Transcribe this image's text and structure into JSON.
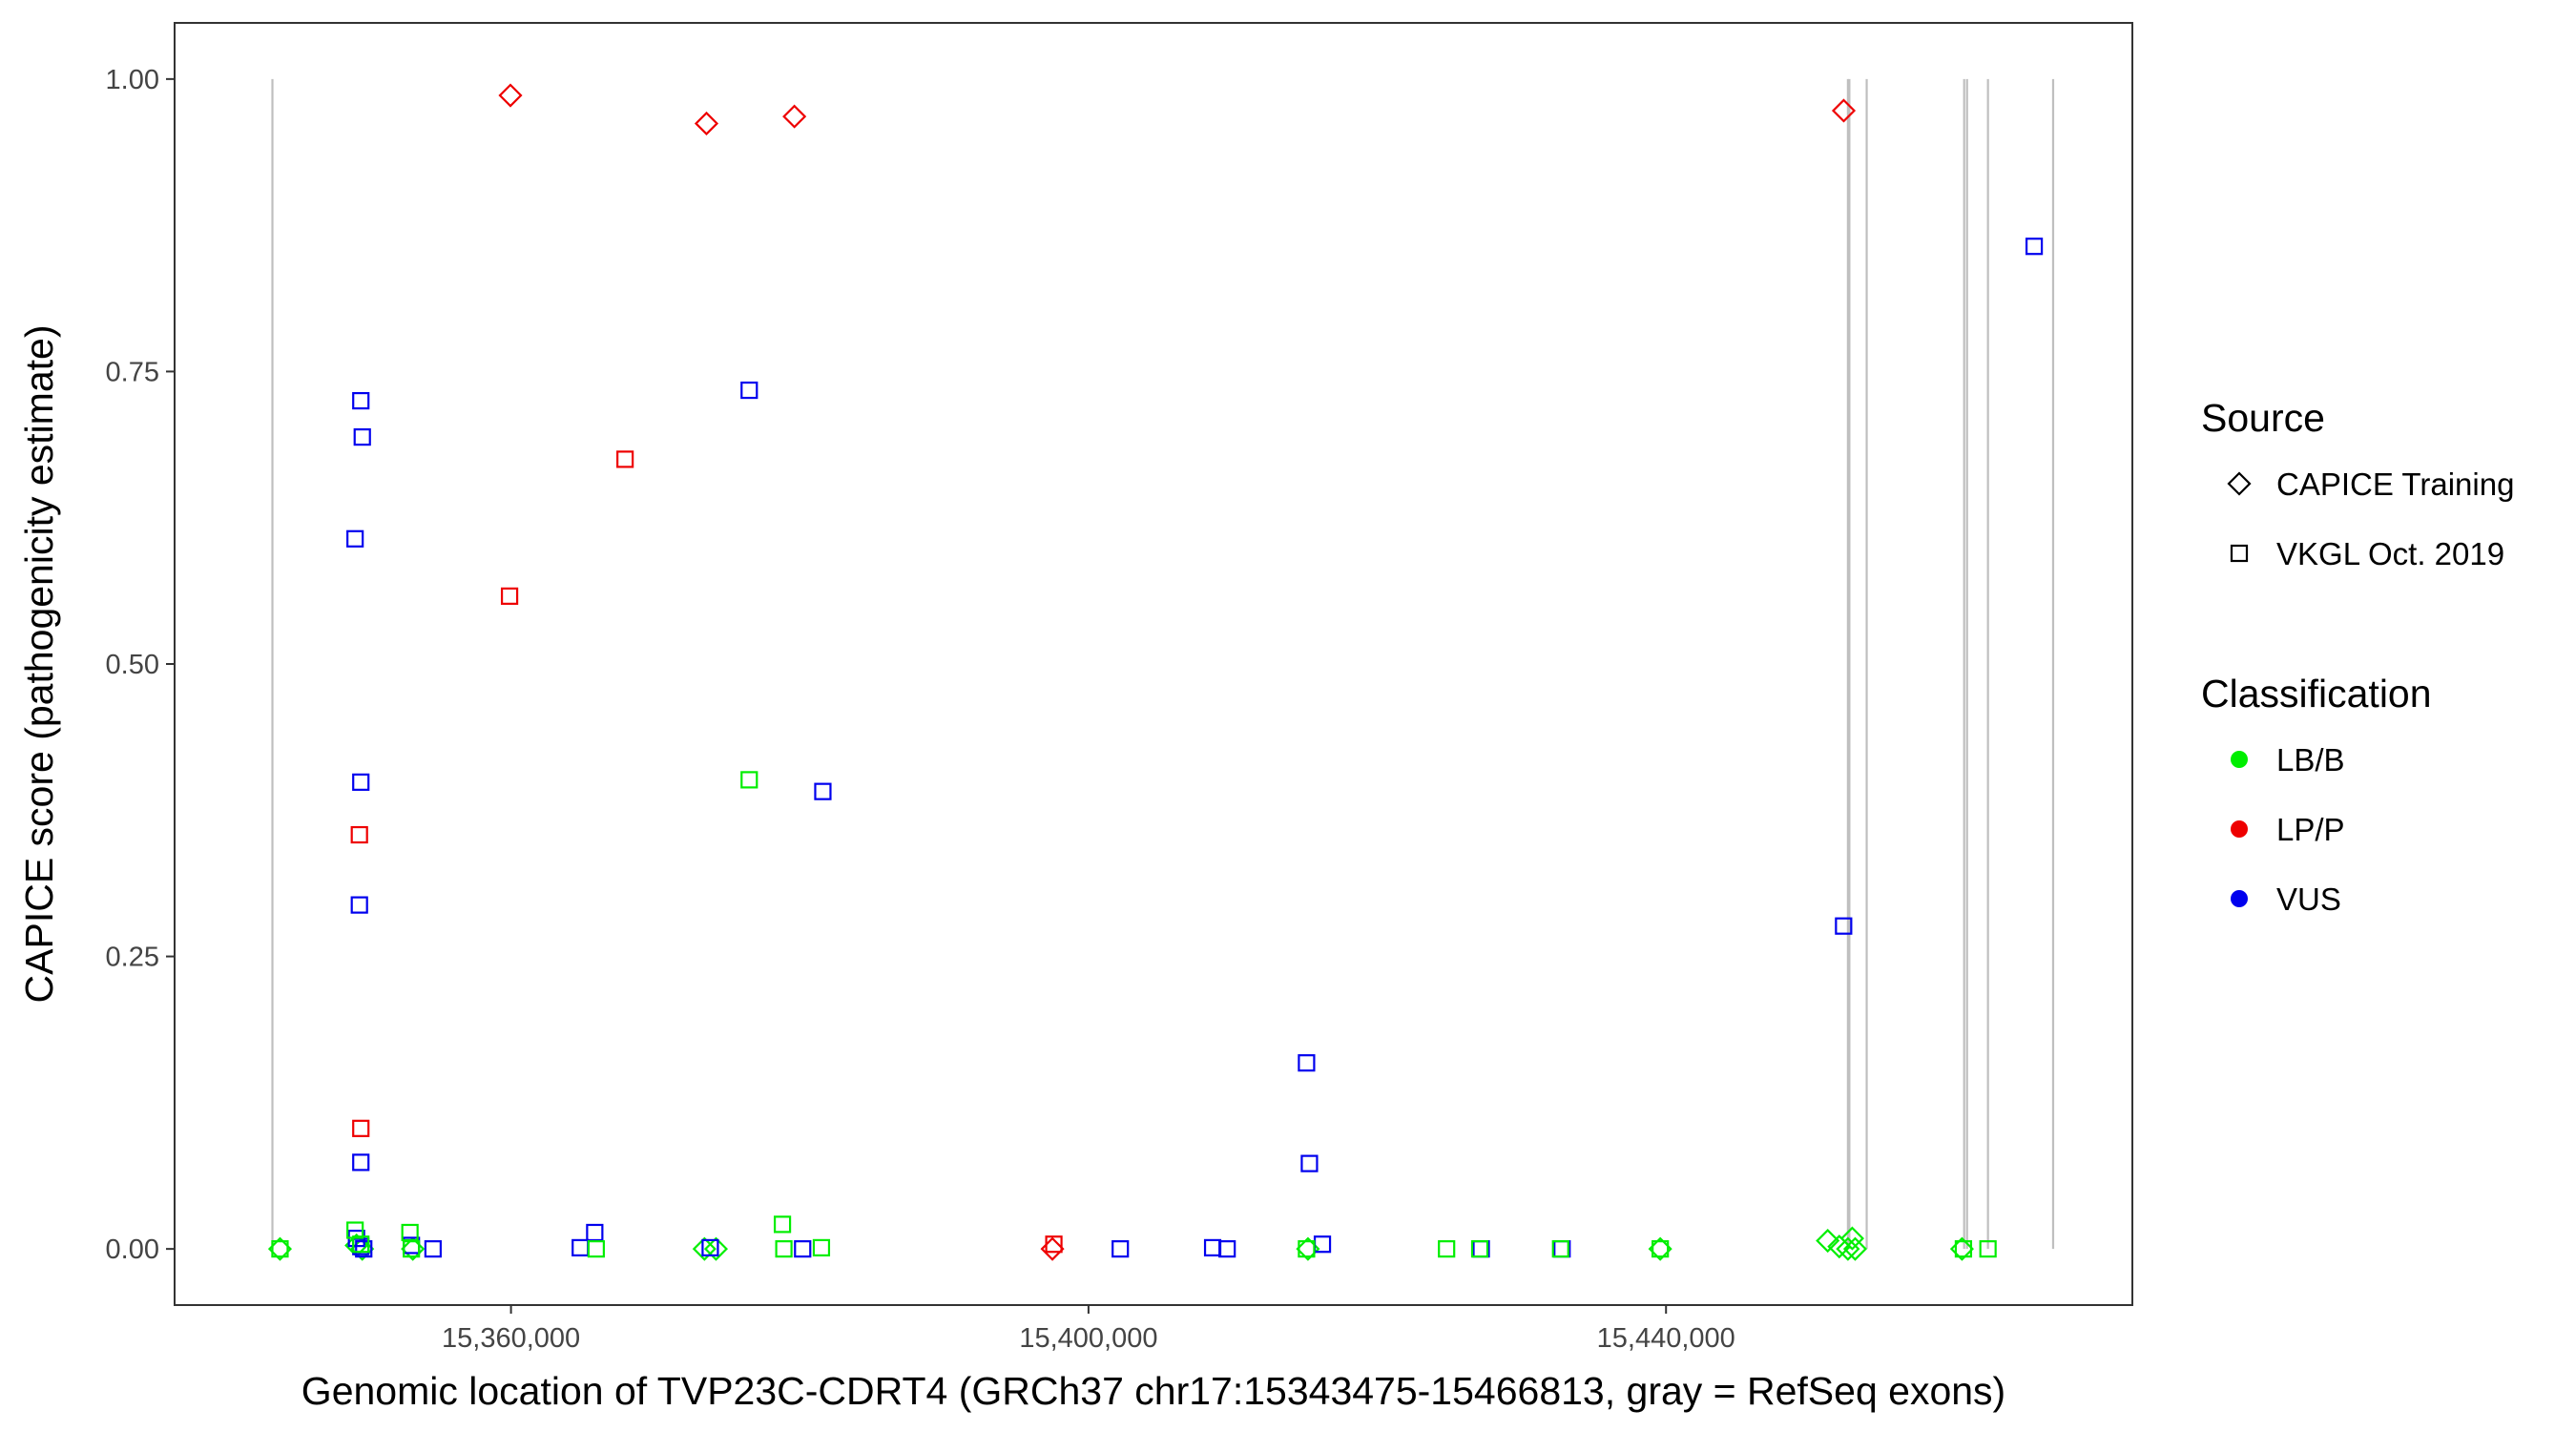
{
  "chart_data": {
    "type": "scatter",
    "title": "",
    "xlabel": "Genomic location of TVP23C-CDRT4 (GRCh37 chr17:15343475-15466813, gray = RefSeq exons)",
    "ylabel": "CAPICE score (pathogenicity estimate)",
    "xlim": [
      15336700,
      15472300
    ],
    "ylim": [
      -0.048,
      1.048
    ],
    "x_ticks": [
      15360000,
      15400000,
      15440000
    ],
    "x_tick_labels": [
      "15,360,000",
      "15,400,000",
      "15,440,000"
    ],
    "y_ticks": [
      0,
      0.25,
      0.5,
      0.75,
      1.0
    ],
    "y_tick_labels": [
      "0.00",
      "0.25",
      "0.50",
      "0.75",
      "1.00"
    ],
    "grid": false,
    "exon_positions": [
      15343475,
      15452600,
      15452700,
      15453900,
      15460650,
      15460850,
      15462300,
      15466813
    ],
    "colors": {
      "LB/B": "#00ee00",
      "LP/P": "#ee0000",
      "VUS": "#0000ee",
      "exon": "#bfbfbf"
    },
    "legend": {
      "placement": "right",
      "source": {
        "title": "Source",
        "entries": [
          {
            "label": "CAPICE Training",
            "shape": "diamond"
          },
          {
            "label": "VKGL Oct. 2019",
            "shape": "square"
          }
        ]
      },
      "classification": {
        "title": "Classification",
        "entries": [
          {
            "label": "LB/B",
            "key": "LB/B"
          },
          {
            "label": "LP/P",
            "key": "LP/P"
          },
          {
            "label": "VUS",
            "key": "VUS"
          }
        ]
      }
    },
    "series": [
      {
        "source": "CAPICE Training",
        "classification": "LP/P",
        "shape": "diamond",
        "points": [
          [
            15359960,
            0.986
          ],
          [
            15373540,
            0.962
          ],
          [
            15379630,
            0.968
          ],
          [
            15452310,
            0.973
          ],
          [
            15397500,
            0.0
          ]
        ]
      },
      {
        "source": "CAPICE Training",
        "classification": "LB/B",
        "shape": "diamond",
        "points": [
          [
            15344000,
            0.0
          ],
          [
            15349300,
            0.003
          ],
          [
            15349700,
            0.0
          ],
          [
            15353200,
            0.0
          ],
          [
            15373400,
            0.0
          ],
          [
            15374200,
            0.0
          ],
          [
            15415200,
            0.0
          ],
          [
            15439600,
            0.0
          ],
          [
            15451200,
            0.007
          ],
          [
            15452000,
            0.002
          ],
          [
            15452600,
            0.0
          ],
          [
            15452900,
            0.009
          ],
          [
            15453100,
            0.0
          ],
          [
            15460500,
            0.0
          ]
        ]
      },
      {
        "source": "VKGL Oct. 2019",
        "classification": "LP/P",
        "shape": "square",
        "points": [
          [
            15367900,
            0.675
          ],
          [
            15359900,
            0.558
          ],
          [
            15349500,
            0.354
          ],
          [
            15349600,
            0.103
          ],
          [
            15397600,
            0.004
          ]
        ]
      },
      {
        "source": "VKGL Oct. 2019",
        "classification": "VUS",
        "shape": "square",
        "points": [
          [
            15349600,
            0.725
          ],
          [
            15349700,
            0.694
          ],
          [
            15349200,
            0.607
          ],
          [
            15349600,
            0.399
          ],
          [
            15349500,
            0.294
          ],
          [
            15349600,
            0.074
          ],
          [
            15349300,
            0.009
          ],
          [
            15349600,
            0.002
          ],
          [
            15349800,
            0.0
          ],
          [
            15353100,
            0.003
          ],
          [
            15354600,
            0.0
          ],
          [
            15364800,
            0.001
          ],
          [
            15365800,
            0.014
          ],
          [
            15373800,
            0.001
          ],
          [
            15376500,
            0.734
          ],
          [
            15381600,
            0.391
          ],
          [
            15380200,
            0.0
          ],
          [
            15402200,
            0.0
          ],
          [
            15408600,
            0.001
          ],
          [
            15409600,
            0.0
          ],
          [
            15415100,
            0.159
          ],
          [
            15415300,
            0.073
          ],
          [
            15416200,
            0.004
          ],
          [
            15427200,
            0.0
          ],
          [
            15432800,
            0.0
          ],
          [
            15452300,
            0.276
          ],
          [
            15465500,
            0.857
          ]
        ]
      },
      {
        "source": "VKGL Oct. 2019",
        "classification": "LB/B",
        "shape": "square",
        "points": [
          [
            15344000,
            0.0
          ],
          [
            15349200,
            0.016
          ],
          [
            15349600,
            0.004
          ],
          [
            15353000,
            0.014
          ],
          [
            15353100,
            0.0
          ],
          [
            15365900,
            0.0
          ],
          [
            15376500,
            0.401
          ],
          [
            15378800,
            0.021
          ],
          [
            15378900,
            0.0
          ],
          [
            15381500,
            0.001
          ],
          [
            15415100,
            0.0
          ],
          [
            15424800,
            0.0
          ],
          [
            15427100,
            0.0
          ],
          [
            15432700,
            0.0
          ],
          [
            15439600,
            0.0
          ],
          [
            15460600,
            0.0
          ],
          [
            15462300,
            0.0
          ]
        ]
      }
    ]
  }
}
